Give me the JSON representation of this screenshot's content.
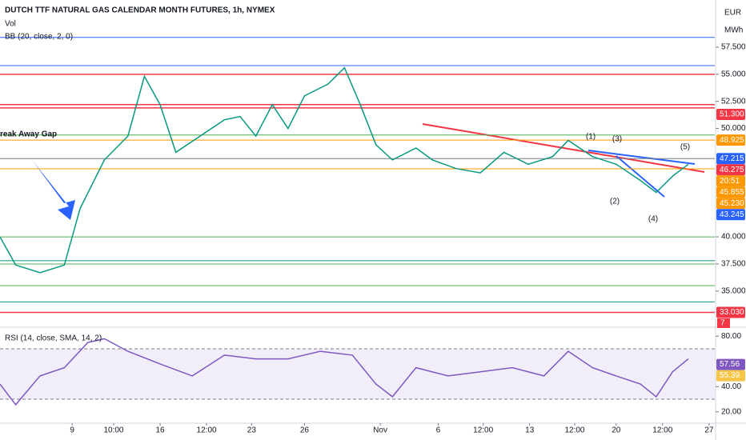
{
  "header": {
    "title": "DUTCH TTF NATURAL GAS CALENDAR MONTH FUTURES, 1h, NYMEX",
    "volume": "Vol",
    "bb": "BB (20, close, 2, 0)",
    "rsi": "RSI (14, close, SMA, 14, 2)",
    "currency": "EUR",
    "unit": "MWh",
    "volume_label": "7"
  },
  "annotations": [
    "reak Away Gap",
    "(1)",
    "(2)",
    "(3)",
    "(4)",
    "(5)"
  ],
  "chart_data": [
    {
      "type": "line",
      "color": "#089981",
      "xlim": [
        0,
        100
      ],
      "ylim": [
        31.74,
        61.85
      ],
      "x": [
        0,
        2.2,
        5.6,
        9,
        11.2,
        14.6,
        17.9,
        20.2,
        22.4,
        24.6,
        28,
        31.4,
        33.6,
        35.8,
        38.1,
        40.3,
        42.6,
        45.9,
        48.2,
        50.4,
        52.6,
        54.9,
        58.2,
        60.5,
        63.8,
        67.2,
        70.5,
        73.9,
        77.3,
        79.5,
        82.9,
        86.2,
        89.6,
        91.8,
        94.1,
        96.3
      ],
      "values": [
        40.0,
        37.4,
        36.7,
        37.4,
        42.6,
        47.1,
        49.3,
        54.8,
        52.2,
        47.8,
        49.3,
        50.8,
        51.1,
        49.3,
        52.2,
        50.0,
        53.0,
        54.1,
        55.6,
        52.2,
        48.5,
        47.1,
        48.2,
        47.1,
        46.3,
        45.9,
        47.8,
        46.7,
        47.4,
        48.9,
        47.4,
        46.7,
        45.2,
        44.1,
        45.6,
        46.7
      ],
      "yticks": [
        {
          "value": 57.5,
          "label": "57.500"
        },
        {
          "value": 55,
          "label": "55.000"
        },
        {
          "value": 52.5,
          "label": "52.500"
        },
        {
          "value": 50,
          "label": "50.000"
        },
        {
          "value": 40,
          "label": "40.000"
        },
        {
          "value": 37.5,
          "label": "37.500"
        },
        {
          "value": 35,
          "label": "35.000"
        }
      ],
      "levels": [
        {
          "value": 58.4,
          "color": "#2962ff"
        },
        {
          "value": 55.8,
          "color": "#2962ff"
        },
        {
          "value": 55.0,
          "color": "#f23645"
        },
        {
          "value": 52.2,
          "color": "#f23645"
        },
        {
          "value": 51.9,
          "color": "#f23645"
        },
        {
          "value": 49.4,
          "color": "#4caf50"
        },
        {
          "value": 48.925,
          "color": "#ff9800"
        },
        {
          "value": 47.215,
          "color": "#787b86"
        },
        {
          "value": 46.275,
          "color": "#ff9800"
        },
        {
          "value": 40.0,
          "color": "#4caf50"
        },
        {
          "value": 37.8,
          "color": "#089981"
        },
        {
          "value": 37.5,
          "color": "#4caf50"
        },
        {
          "value": 35.5,
          "color": "#4caf50"
        },
        {
          "value": 34.0,
          "color": "#089981"
        },
        {
          "value": 33.03,
          "color": "#f23645"
        }
      ],
      "price_labels": [
        {
          "value": 51.3,
          "label": "51.300",
          "color": "#f23645"
        },
        {
          "value": 48.925,
          "label": "48.925",
          "color": "#ff9800"
        },
        {
          "value": 47.215,
          "label": "47.215",
          "color": "#2962ff"
        },
        {
          "value": 46.275,
          "label": "46.275",
          "color": "#f23645"
        },
        {
          "label": "20:51",
          "color": "#ff9800"
        },
        {
          "value": 45.855,
          "label": "45.855",
          "color": "#ff9800"
        },
        {
          "value": 45.23,
          "label": "45.230",
          "color": "#ff9800"
        },
        {
          "value": 43.245,
          "label": "43.245",
          "color": "#2962ff"
        },
        {
          "value": 33.03,
          "label": "33.030",
          "color": "#f23645"
        }
      ]
    },
    {
      "type": "line",
      "color": "#7e57c2",
      "xlim": [
        0,
        100
      ],
      "ylim": [
        11.6,
        86.5
      ],
      "band": [
        30,
        70
      ],
      "x": [
        0,
        2.2,
        5.6,
        9,
        12.3,
        14.6,
        17.9,
        22.4,
        26.9,
        31.4,
        35.8,
        40.3,
        44.8,
        49.3,
        52.6,
        54.9,
        58.2,
        62.7,
        67.2,
        71.7,
        76.1,
        79.5,
        82.9,
        86.2,
        89.6,
        91.8,
        94.1,
        96.3
      ],
      "values": [
        42,
        25.6,
        48.5,
        55,
        75,
        78,
        68,
        58,
        48.5,
        65,
        62,
        62,
        68,
        65,
        42,
        32,
        55,
        48.5,
        51.8,
        55,
        48.5,
        68,
        55,
        48.5,
        42,
        32,
        51.8,
        62
      ],
      "yticks": [
        {
          "value": 80,
          "label": "80.00"
        },
        {
          "value": 40,
          "label": "40.00"
        },
        {
          "value": 20,
          "label": "20.00"
        }
      ],
      "price_labels": [
        {
          "value": 57.56,
          "label": "57.56",
          "color": "#7e57c2"
        },
        {
          "value": 55.39,
          "label": "55.39",
          "color": "#f7c548"
        }
      ],
      "xticks": [
        {
          "value": 10.1,
          "label": "9"
        },
        {
          "value": 15.9,
          "label": "10:00"
        },
        {
          "value": 22.4,
          "label": "16"
        },
        {
          "value": 28.9,
          "label": "12:00"
        },
        {
          "value": 35.2,
          "label": "23"
        },
        {
          "value": 42.6,
          "label": "26"
        },
        {
          "value": 53.2,
          "label": "Nov"
        },
        {
          "value": 61.3,
          "label": "6"
        },
        {
          "value": 67.6,
          "label": "12:00"
        },
        {
          "value": 74.1,
          "label": "13"
        },
        {
          "value": 80.4,
          "label": "12:00"
        },
        {
          "value": 86.2,
          "label": "20"
        },
        {
          "value": 92.7,
          "label": "12:00"
        },
        {
          "value": 99.2,
          "label": "27"
        }
      ]
    }
  ]
}
